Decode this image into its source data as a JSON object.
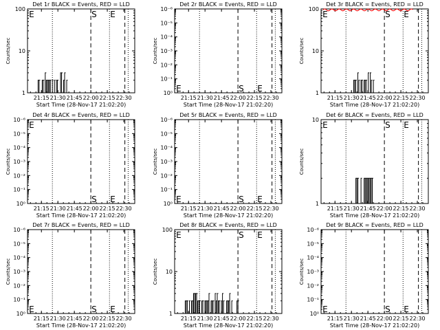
{
  "common": {
    "xlabel": "Start Time (28-Nov-17 21:02:20)",
    "ylabel": "Counts/sec",
    "x_ticks": [
      "21:15",
      "21:30",
      "21:45",
      "22:00",
      "22:15",
      "22:30"
    ],
    "start_marker": "S",
    "end_marker": "E",
    "colors": {
      "events": "#000000",
      "lld": "#ff0000"
    }
  },
  "chart_data": [
    {
      "type": "line",
      "title": "Det 1r BLACK = Events, RED = LLD",
      "y_scale": "log",
      "ylim": [
        1,
        100
      ],
      "ytick_labels": [
        "1",
        "10",
        "100"
      ],
      "xlim": [
        "21:02:20",
        "22:40"
      ],
      "series": [
        {
          "name": "Events",
          "color": "#000000",
          "activity": {
            "start": "21:12",
            "end": "21:38",
            "min": 1,
            "max": 3
          }
        }
      ],
      "dotted_lines_at": [
        "21:25",
        "22:17",
        "22:34"
      ],
      "dashed_lines_at": [
        "22:00",
        "22:31"
      ],
      "markers": [
        {
          "label": "E",
          "x": "21:03",
          "position": "top"
        },
        {
          "label": "S",
          "x": "22:00",
          "position": "top"
        },
        {
          "label": "E",
          "x": "22:17",
          "position": "top"
        }
      ]
    },
    {
      "type": "line",
      "title": "Det 2r BLACK = Events, RED = LLD",
      "y_scale": "log",
      "ylim": [
        1e-06,
        1.0
      ],
      "ytick_labels": [
        "10⁰",
        "10⁻¹",
        "10⁻²",
        "10⁻³",
        "10⁻⁴",
        "10⁻⁵",
        "10⁻⁶"
      ],
      "xlim": [
        "21:02:20",
        "22:40"
      ],
      "series": [],
      "dotted_lines_at": [
        "21:25",
        "22:17",
        "22:34"
      ],
      "dashed_lines_at": [
        "22:00",
        "22:31"
      ],
      "markers": [
        {
          "label": "E",
          "x": "21:03",
          "position": "bottom"
        },
        {
          "label": "S",
          "x": "22:00",
          "position": "bottom"
        },
        {
          "label": "E",
          "x": "22:17",
          "position": "bottom"
        }
      ]
    },
    {
      "type": "line",
      "title": "Det 3r BLACK = Events, RED = LLD",
      "y_scale": "log",
      "ylim": [
        1,
        100
      ],
      "ytick_labels": [
        "1",
        "10",
        "100"
      ],
      "xlim": [
        "21:02:20",
        "22:40"
      ],
      "series": [
        {
          "name": "Events",
          "color": "#000000",
          "activity": {
            "start": "21:32",
            "end": "21:50",
            "min": 1,
            "max": 3
          }
        },
        {
          "name": "LLD",
          "color": "#ff0000",
          "activity": {
            "start": "21:04",
            "end": "22:26",
            "min": 90,
            "max": 100
          }
        }
      ],
      "dotted_lines_at": [
        "21:25",
        "22:17",
        "22:34"
      ],
      "dashed_lines_at": [
        "22:00",
        "22:31"
      ],
      "markers": [
        {
          "label": "E",
          "x": "21:03",
          "position": "top"
        },
        {
          "label": "S",
          "x": "22:00",
          "position": "top"
        },
        {
          "label": "E",
          "x": "22:17",
          "position": "top"
        }
      ]
    },
    {
      "type": "line",
      "title": "Det 4r BLACK = Events, RED = LLD",
      "y_scale": "log",
      "ylim": [
        1e-06,
        1.0
      ],
      "ytick_labels": [
        "10⁰",
        "10⁻¹",
        "10⁻²",
        "10⁻³",
        "10⁻⁴",
        "10⁻⁵",
        "10⁻⁶"
      ],
      "xlim": [
        "21:02:20",
        "22:40"
      ],
      "series": [],
      "dotted_lines_at": [
        "21:25",
        "22:17",
        "22:34"
      ],
      "dashed_lines_at": [
        "22:00",
        "22:31"
      ],
      "markers": [
        {
          "label": "E",
          "x": "21:03",
          "position": "top"
        },
        {
          "label": "S",
          "x": "22:00",
          "position": "bottom"
        },
        {
          "label": "E",
          "x": "22:17",
          "position": "bottom"
        }
      ]
    },
    {
      "type": "line",
      "title": "Det 5r BLACK = Events, RED = LLD",
      "y_scale": "log",
      "ylim": [
        1e-06,
        1.0
      ],
      "ytick_labels": [
        "10⁰",
        "10⁻¹",
        "10⁻²",
        "10⁻³",
        "10⁻⁴",
        "10⁻⁵",
        "10⁻⁶"
      ],
      "xlim": [
        "21:02:20",
        "22:40"
      ],
      "series": [],
      "dotted_lines_at": [
        "21:25",
        "22:17",
        "22:34"
      ],
      "dashed_lines_at": [
        "22:00",
        "22:31"
      ],
      "markers": [
        {
          "label": "E",
          "x": "21:03",
          "position": "bottom"
        },
        {
          "label": "S",
          "x": "22:00",
          "position": "bottom"
        },
        {
          "label": "E",
          "x": "22:17",
          "position": "bottom"
        }
      ]
    },
    {
      "type": "line",
      "title": "Det 6r BLACK = Events, RED = LLD",
      "y_scale": "log",
      "ylim": [
        1,
        10
      ],
      "ytick_labels": [
        "1",
        "10"
      ],
      "xlim": [
        "21:02:20",
        "22:40"
      ],
      "series": [
        {
          "name": "Events",
          "color": "#000000",
          "activity": {
            "start": "21:34",
            "end": "21:49",
            "min": 1,
            "max": 2
          }
        }
      ],
      "dotted_lines_at": [
        "21:25",
        "22:17",
        "22:34"
      ],
      "dashed_lines_at": [
        "22:00",
        "22:31"
      ],
      "markers": [
        {
          "label": "E",
          "x": "21:03",
          "position": "top"
        },
        {
          "label": "S",
          "x": "22:00",
          "position": "top"
        },
        {
          "label": "E",
          "x": "22:17",
          "position": "top"
        }
      ]
    },
    {
      "type": "line",
      "title": "Det 7r BLACK = Events, RED = LLD",
      "y_scale": "log",
      "ylim": [
        1e-06,
        1.0
      ],
      "ytick_labels": [
        "10⁰",
        "10⁻¹",
        "10⁻²",
        "10⁻³",
        "10⁻⁴",
        "10⁻⁵",
        "10⁻⁶"
      ],
      "xlim": [
        "21:02:20",
        "22:40"
      ],
      "series": [],
      "dotted_lines_at": [
        "21:25",
        "22:17",
        "22:34"
      ],
      "dashed_lines_at": [
        "22:00",
        "22:31"
      ],
      "markers": [
        {
          "label": "E",
          "x": "21:03",
          "position": "bottom"
        },
        {
          "label": "S",
          "x": "22:00",
          "position": "bottom"
        },
        {
          "label": "E",
          "x": "22:17",
          "position": "bottom"
        }
      ]
    },
    {
      "type": "line",
      "title": "Det 8r BLACK = Events, RED = LLD",
      "y_scale": "log",
      "ylim": [
        1,
        100
      ],
      "ytick_labels": [
        "1",
        "10",
        "100"
      ],
      "xlim": [
        "21:02:20",
        "22:40"
      ],
      "series": [
        {
          "name": "Events",
          "color": "#000000",
          "activity": {
            "start": "21:12",
            "end": "22:00",
            "min": 1,
            "max": 3
          }
        }
      ],
      "dotted_lines_at": [
        "21:25",
        "22:17",
        "22:34"
      ],
      "dashed_lines_at": [
        "22:00",
        "22:31"
      ],
      "markers": [
        {
          "label": "E",
          "x": "21:03",
          "position": "top"
        },
        {
          "label": "S",
          "x": "22:00",
          "position": "top"
        },
        {
          "label": "E",
          "x": "22:17",
          "position": "top"
        }
      ]
    },
    {
      "type": "line",
      "title": "Det 9r BLACK = Events, RED = LLD",
      "y_scale": "log",
      "ylim": [
        1e-06,
        1.0
      ],
      "ytick_labels": [
        "10⁰",
        "10⁻¹",
        "10⁻²",
        "10⁻³",
        "10⁻⁴",
        "10⁻⁵",
        "10⁻⁶"
      ],
      "xlim": [
        "21:02:20",
        "22:40"
      ],
      "series": [],
      "dotted_lines_at": [
        "21:25",
        "22:17",
        "22:34"
      ],
      "dashed_lines_at": [
        "22:00",
        "22:31"
      ],
      "markers": [
        {
          "label": "E",
          "x": "21:03",
          "position": "bottom"
        },
        {
          "label": "S",
          "x": "22:00",
          "position": "bottom"
        },
        {
          "label": "E",
          "x": "22:17",
          "position": "bottom"
        }
      ]
    }
  ]
}
